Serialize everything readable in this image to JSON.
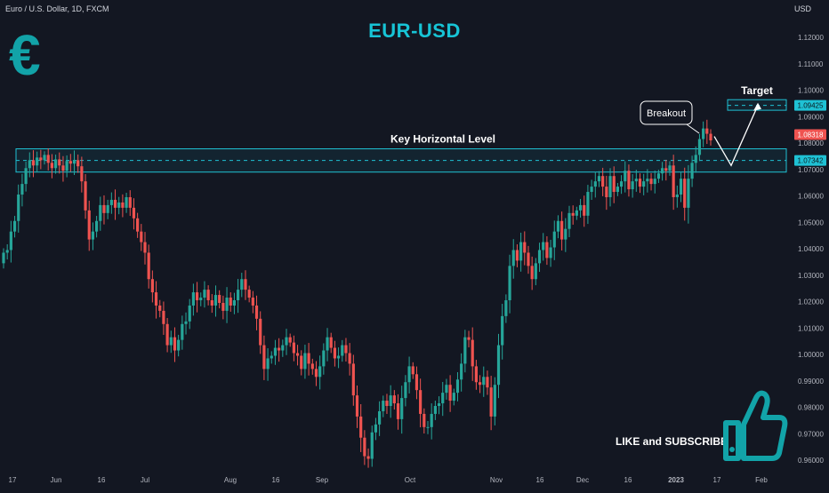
{
  "header": {
    "symbol_line": "Euro / U.S. Dollar, 1D, FXCM",
    "currency": "USD"
  },
  "title": "EUR-USD",
  "logo_symbol": "€",
  "cta_text": "LIKE and SUBSCRIBE",
  "icons": {
    "logo": "euro-icon",
    "cta": "thumbs-up-icon"
  },
  "colors": {
    "background": "#131722",
    "bull": "#26a69a",
    "bear": "#ef5350",
    "accent": "#17c4d6",
    "zone": "#1fc1d4",
    "text": "#d1d4dc"
  },
  "chart_data": {
    "type": "candlestick",
    "title": "EUR-USD",
    "ylim": [
      0.956,
      1.129
    ],
    "y_ticks": [
      "1.12000",
      "1.11000",
      "1.10000",
      "1.09000",
      "1.08000",
      "1.07000",
      "1.06000",
      "1.05000",
      "1.04000",
      "1.03000",
      "1.02000",
      "1.01000",
      "1.00000",
      "0.99000",
      "0.98000",
      "0.97000",
      "0.96000"
    ],
    "x_ticks": [
      "17",
      "Jun",
      "16",
      "Jul",
      "Aug",
      "16",
      "Sep",
      "Oct",
      "Nov",
      "16",
      "Dec",
      "16",
      "2023",
      "17",
      "Feb"
    ],
    "price_labels": [
      {
        "value": 1.09425,
        "text": "1.09425"
      },
      {
        "value": 1.08318,
        "text": "1.08318"
      },
      {
        "value": 1.07342,
        "text": "1.07342"
      }
    ],
    "annotations": {
      "key_level": {
        "text": "Key Horizontal Level",
        "y_low": 1.069,
        "y_high": 1.0778,
        "line": 1.07342
      },
      "target": {
        "text": "Target",
        "y_low": 1.0924,
        "y_high": 1.0964,
        "line": 1.09425
      },
      "breakout": {
        "text": "Breakout"
      }
    },
    "closes": [
      1.0385,
      1.0395,
      1.0465,
      1.0505,
      1.0605,
      1.0645,
      1.0705,
      1.0735,
      1.0715,
      1.0745,
      1.0735,
      1.0755,
      1.0725,
      1.0705,
      1.0738,
      1.0715,
      1.0695,
      1.0732,
      1.0722,
      1.0735,
      1.0712,
      1.0655,
      1.0545,
      1.0435,
      1.0465,
      1.0505,
      1.0565,
      1.0535,
      1.0565,
      1.0585,
      1.0555,
      1.0575,
      1.0555,
      1.0595,
      1.0555,
      1.0515,
      1.0465,
      1.0425,
      1.0385,
      1.0285,
      1.0235,
      1.0185,
      1.0165,
      1.0115,
      1.0035,
      1.0065,
      1.0015,
      1.0055,
      1.0115,
      1.0125,
      1.0185,
      1.0235,
      1.0205,
      1.0215,
      1.0245,
      1.0205,
      1.0185,
      1.0225,
      1.0195,
      1.0165,
      1.0215,
      1.0185,
      1.0205,
      1.0245,
      1.0285,
      1.0245,
      1.0215,
      1.0185,
      1.0135,
      1.0035,
      0.9945,
      0.9985,
      0.9995,
      1.0025,
      1.0015,
      1.0035,
      1.0065,
      1.0045,
      1.0005,
      0.9995,
      0.9945,
      1.0005,
      0.9965,
      0.9945,
      0.9915,
      0.9955,
      1.0015,
      1.0065,
      1.0025,
      0.9985,
      0.9995,
      1.0035,
      1.0005,
      0.9965,
      0.9845,
      0.9765,
      0.9685,
      0.9615,
      0.9605,
      0.9705,
      0.9735,
      0.9785,
      0.9825,
      0.9805,
      0.9845,
      0.9815,
      0.9755,
      0.9835,
      0.9895,
      0.9955,
      0.9925,
      0.9865,
      0.9775,
      0.9725,
      0.9725,
      0.9775,
      0.9805,
      0.9815,
      0.9855,
      0.9885,
      0.9825,
      0.9855,
      0.9905,
      0.9965,
      1.0065,
      1.0055,
      0.9955,
      0.9895,
      0.9885,
      0.9915,
      0.9875,
      0.9765,
      0.9885,
      1.0035,
      1.0145,
      1.0205,
      1.0335,
      1.0395,
      1.0355,
      1.0425,
      1.0385,
      1.0335,
      1.0285,
      1.0345,
      1.0395,
      1.0425,
      1.0365,
      1.0405,
      1.0465,
      1.0505,
      1.0435,
      1.0475,
      1.0535,
      1.0525,
      1.0545,
      1.0565,
      1.0525,
      1.0615,
      1.0635,
      1.0655,
      1.0675,
      1.0635,
      1.0595,
      1.0675,
      1.0615,
      1.0635,
      1.0655,
      1.0695,
      1.0625,
      1.0655,
      1.0665,
      1.0635,
      1.0655,
      1.0665,
      1.0645,
      1.0665,
      1.0685,
      1.0705,
      1.0695,
      1.0715,
      1.0595,
      1.0605,
      1.0665,
      1.0555,
      1.0665,
      1.0725,
      1.0755,
      1.0815,
      1.0855,
      1.0835,
      1.081
    ]
  }
}
